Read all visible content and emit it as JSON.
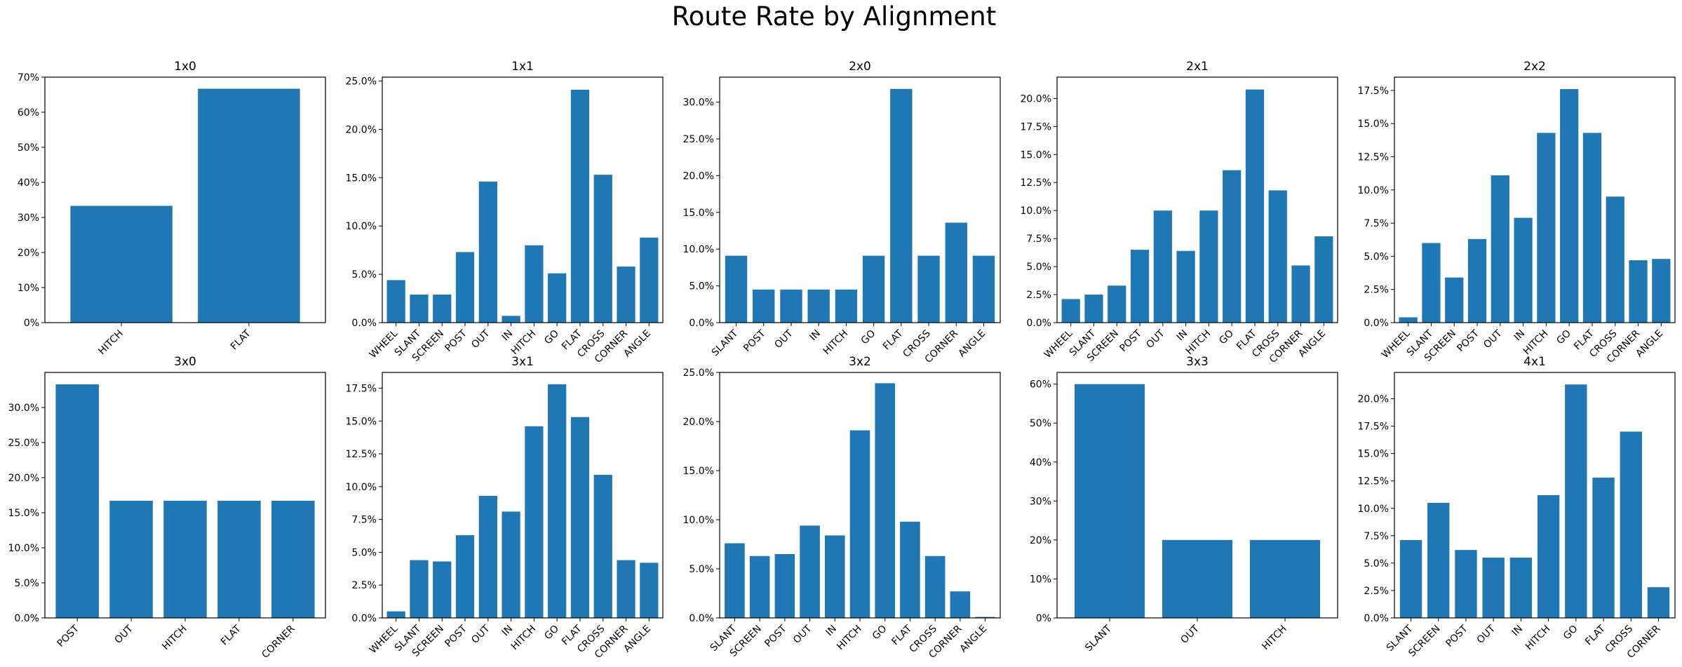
{
  "title": "Route Rate by Alignment",
  "colors": {
    "bar": "#1f77b4"
  },
  "chart_data": [
    {
      "type": "bar",
      "title": "1x0",
      "categories": [
        "HITCH",
        "FLAT"
      ],
      "values": [
        0.333,
        0.667
      ],
      "ylim": [
        0,
        0.7
      ],
      "yticks": [
        0,
        0.1,
        0.2,
        0.3,
        0.4,
        0.5,
        0.6,
        0.7
      ],
      "ytick_labels": [
        "0%",
        "10%",
        "20%",
        "30%",
        "40%",
        "50%",
        "60%",
        "70%"
      ]
    },
    {
      "type": "bar",
      "title": "1x1",
      "categories": [
        "WHEEL",
        "SLANT",
        "SCREEN",
        "POST",
        "OUT",
        "IN",
        "HITCH",
        "GO",
        "FLAT",
        "CROSS",
        "CORNER",
        "ANGLE"
      ],
      "values": [
        0.044,
        0.029,
        0.029,
        0.073,
        0.146,
        0.007,
        0.08,
        0.051,
        0.241,
        0.153,
        0.058,
        0.088
      ],
      "ylim": [
        0,
        0.254
      ],
      "yticks": [
        0,
        0.05,
        0.1,
        0.15,
        0.2,
        0.25
      ],
      "ytick_labels": [
        "0.0%",
        "5.0%",
        "10.0%",
        "15.0%",
        "20.0%",
        "25.0%"
      ]
    },
    {
      "type": "bar",
      "title": "2x0",
      "categories": [
        "SLANT",
        "POST",
        "OUT",
        "IN",
        "HITCH",
        "GO",
        "FLAT",
        "CROSS",
        "CORNER",
        "ANGLE"
      ],
      "values": [
        0.091,
        0.045,
        0.045,
        0.045,
        0.045,
        0.091,
        0.318,
        0.091,
        0.136,
        0.091
      ],
      "ylim": [
        0,
        0.334
      ],
      "yticks": [
        0,
        0.05,
        0.1,
        0.15,
        0.2,
        0.25,
        0.3
      ],
      "ytick_labels": [
        "0.0%",
        "5.0%",
        "10.0%",
        "15.0%",
        "20.0%",
        "25.0%",
        "30.0%"
      ]
    },
    {
      "type": "bar",
      "title": "2x1",
      "categories": [
        "WHEEL",
        "SLANT",
        "SCREEN",
        "POST",
        "OUT",
        "IN",
        "HITCH",
        "GO",
        "FLAT",
        "CROSS",
        "CORNER",
        "ANGLE"
      ],
      "values": [
        0.021,
        0.025,
        0.033,
        0.065,
        0.1,
        0.064,
        0.1,
        0.136,
        0.208,
        0.118,
        0.051,
        0.077
      ],
      "ylim": [
        0,
        0.219
      ],
      "yticks": [
        0,
        0.025,
        0.05,
        0.075,
        0.1,
        0.125,
        0.15,
        0.175,
        0.2
      ],
      "ytick_labels": [
        "0.0%",
        "2.5%",
        "5.0%",
        "7.5%",
        "10.0%",
        "12.5%",
        "15.0%",
        "17.5%",
        "20.0%"
      ]
    },
    {
      "type": "bar",
      "title": "2x2",
      "categories": [
        "WHEEL",
        "SLANT",
        "SCREEN",
        "POST",
        "OUT",
        "IN",
        "HITCH",
        "GO",
        "FLAT",
        "CROSS",
        "CORNER",
        "ANGLE"
      ],
      "values": [
        0.004,
        0.06,
        0.034,
        0.063,
        0.111,
        0.079,
        0.143,
        0.176,
        0.143,
        0.095,
        0.047,
        0.048
      ],
      "ylim": [
        0,
        0.185
      ],
      "yticks": [
        0,
        0.025,
        0.05,
        0.075,
        0.1,
        0.125,
        0.15,
        0.175
      ],
      "ytick_labels": [
        "0.0%",
        "2.5%",
        "5.0%",
        "7.5%",
        "10.0%",
        "12.5%",
        "15.0%",
        "17.5%"
      ]
    },
    {
      "type": "bar",
      "title": "3x0",
      "categories": [
        "POST",
        "OUT",
        "HITCH",
        "FLAT",
        "CORNER"
      ],
      "values": [
        0.333,
        0.167,
        0.167,
        0.167,
        0.167
      ],
      "ylim": [
        0,
        0.35
      ],
      "yticks": [
        0,
        0.05,
        0.1,
        0.15,
        0.2,
        0.25,
        0.3
      ],
      "ytick_labels": [
        "0.0%",
        "5.0%",
        "10.0%",
        "15.0%",
        "20.0%",
        "25.0%",
        "30.0%"
      ]
    },
    {
      "type": "bar",
      "title": "3x1",
      "categories": [
        "WHEEL",
        "SLANT",
        "SCREEN",
        "POST",
        "OUT",
        "IN",
        "HITCH",
        "GO",
        "FLAT",
        "CROSS",
        "CORNER",
        "ANGLE"
      ],
      "values": [
        0.005,
        0.044,
        0.043,
        0.063,
        0.093,
        0.081,
        0.146,
        0.178,
        0.153,
        0.109,
        0.044,
        0.042
      ],
      "ylim": [
        0,
        0.187
      ],
      "yticks": [
        0,
        0.025,
        0.05,
        0.075,
        0.1,
        0.125,
        0.15,
        0.175
      ],
      "ytick_labels": [
        "0.0%",
        "2.5%",
        "5.0%",
        "7.5%",
        "10.0%",
        "12.5%",
        "15.0%",
        "17.5%"
      ]
    },
    {
      "type": "bar",
      "title": "3x2",
      "categories": [
        "SLANT",
        "SCREEN",
        "POST",
        "OUT",
        "IN",
        "HITCH",
        "GO",
        "FLAT",
        "CROSS",
        "CORNER",
        "ANGLE"
      ],
      "values": [
        0.076,
        0.063,
        0.065,
        0.094,
        0.084,
        0.191,
        0.239,
        0.098,
        0.063,
        0.027,
        0.001
      ],
      "ylim": [
        0,
        0.25
      ],
      "yticks": [
        0,
        0.05,
        0.1,
        0.15,
        0.2,
        0.25
      ],
      "ytick_labels": [
        "0.0%",
        "5.0%",
        "10.0%",
        "15.0%",
        "20.0%",
        "25.0%"
      ]
    },
    {
      "type": "bar",
      "title": "3x3",
      "categories": [
        "SLANT",
        "OUT",
        "HITCH"
      ],
      "values": [
        0.6,
        0.2,
        0.2
      ],
      "ylim": [
        0,
        0.63
      ],
      "yticks": [
        0,
        0.1,
        0.2,
        0.3,
        0.4,
        0.5,
        0.6
      ],
      "ytick_labels": [
        "0%",
        "10%",
        "20%",
        "30%",
        "40%",
        "50%",
        "60%"
      ]
    },
    {
      "type": "bar",
      "title": "4x1",
      "categories": [
        "SLANT",
        "SCREEN",
        "POST",
        "OUT",
        "IN",
        "HITCH",
        "GO",
        "FLAT",
        "CROSS",
        "CORNER"
      ],
      "values": [
        0.071,
        0.105,
        0.062,
        0.055,
        0.055,
        0.112,
        0.213,
        0.128,
        0.17,
        0.028
      ],
      "ylim": [
        0,
        0.224
      ],
      "yticks": [
        0,
        0.025,
        0.05,
        0.075,
        0.1,
        0.125,
        0.15,
        0.175,
        0.2
      ],
      "ytick_labels": [
        "0.0%",
        "2.5%",
        "5.0%",
        "7.5%",
        "10.0%",
        "12.5%",
        "15.0%",
        "17.5%",
        "20.0%"
      ]
    }
  ]
}
